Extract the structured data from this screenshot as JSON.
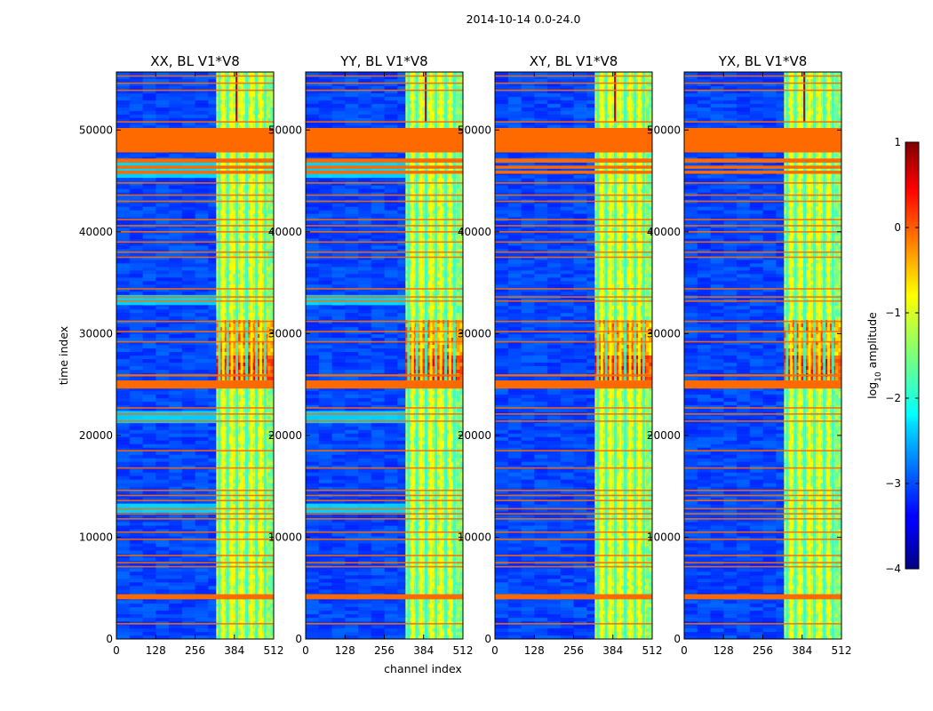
{
  "chart_data": {
    "type": "heatmap",
    "title": "2014-10-14 0.0-24.0",
    "xlabel": "channel index",
    "ylabel": "time index",
    "xlim": [
      0,
      512
    ],
    "ylim": [
      0,
      55700
    ],
    "xticks": [
      0,
      128,
      256,
      384,
      512
    ],
    "yticks": [
      0,
      10000,
      20000,
      30000,
      40000,
      50000
    ],
    "panels": [
      {
        "title": "XX, BL V1*V8",
        "id": "XX"
      },
      {
        "title": "YY, BL V1*V8",
        "id": "YY"
      },
      {
        "title": "XY, BL V1*V8",
        "id": "XY"
      },
      {
        "title": "YX, BL V1*V8",
        "id": "YX"
      }
    ],
    "colorbar": {
      "label": "log10 amplitude",
      "label_main": "log",
      "label_sub": "10",
      "label_rest": " amplitude",
      "min": -4,
      "max": 1,
      "ticks": [
        -4,
        -3,
        -2,
        -1,
        0,
        1
      ],
      "tick_labels": [
        "−4",
        "−3",
        "−2",
        "−1",
        "0",
        "1"
      ],
      "colormap": "jet",
      "flag_color": "#ff6a00"
    },
    "flagged_time_ranges": [
      [
        47800,
        50200
      ],
      [
        46800,
        47200
      ],
      [
        46200,
        46500
      ],
      [
        45700,
        46000
      ],
      [
        25800,
        26000
      ],
      [
        24600,
        25400
      ],
      [
        3900,
        4400
      ]
    ],
    "flagged_time_lines": [
      1500,
      7100,
      7500,
      8200,
      9800,
      10500,
      11800,
      12300,
      12800,
      13600,
      14100,
      14600,
      16800,
      18500,
      21400,
      22100,
      22700,
      29200,
      30200,
      31200,
      33200,
      33600,
      34400,
      37500,
      38000,
      39000,
      40000,
      40600,
      41200,
      43000,
      43600,
      44800,
      50800,
      53900,
      54600,
      55300
    ],
    "rfi_band_channels": [
      325,
      512
    ],
    "rfi_stripe_channels": [
      335,
      348,
      362,
      376,
      392,
      408,
      424,
      440,
      456,
      470,
      484
    ],
    "background_level": -3.0,
    "band_level": -1.2,
    "strong_time_ranges": [
      [
        25500,
        28000
      ],
      [
        28000,
        31000
      ]
    ]
  }
}
